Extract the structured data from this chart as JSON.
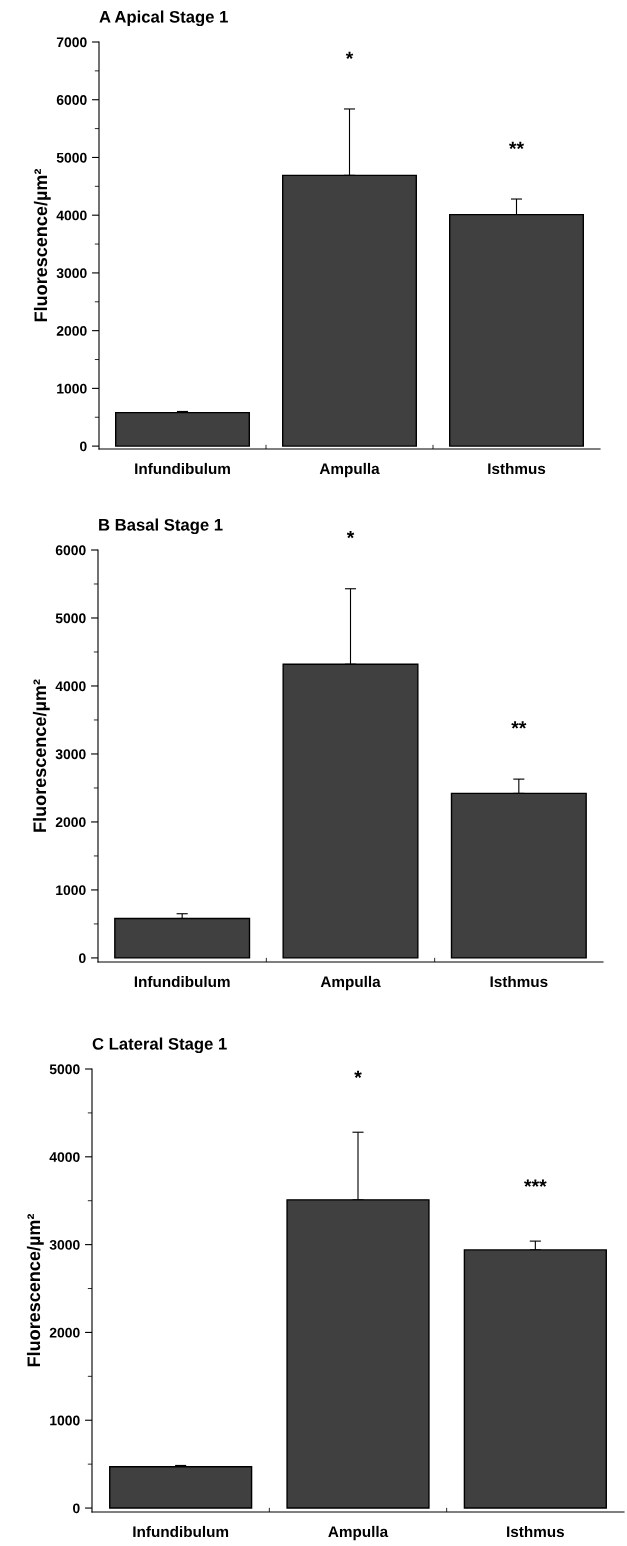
{
  "chart_data": [
    {
      "type": "bar",
      "title": "A Apical Stage 1",
      "ylabel": "Fluorescence/µm²",
      "categories": [
        "Infundibulum",
        "Ampulla",
        "Isthmus"
      ],
      "values": [
        580,
        4690,
        4010
      ],
      "errors": [
        [
          580,
          600
        ],
        [
          4690,
          5840
        ],
        [
          4010,
          4280
        ]
      ],
      "color": "#404040",
      "ylim": [
        -50,
        7000
      ],
      "yticks": [
        0,
        1000,
        2000,
        3000,
        4000,
        5000,
        6000,
        7000
      ],
      "annotations": [
        "*",
        "**"
      ]
    },
    {
      "type": "bar",
      "title": "B Basal Stage 1",
      "ylabel": "Fluorescence/µm²",
      "categories": [
        "Infundibulum",
        "Ampulla",
        "Isthmus"
      ],
      "values": [
        580,
        4320,
        2420
      ],
      "errors": [
        [
          580,
          650
        ],
        [
          4320,
          5430
        ],
        [
          2420,
          2630
        ]
      ],
      "color": "#404040",
      "ylim": [
        -60,
        6000
      ],
      "yticks": [
        0,
        1000,
        2000,
        3000,
        4000,
        5000,
        6000
      ],
      "annotations": [
        "*",
        "**"
      ]
    },
    {
      "type": "bar",
      "title": "C Lateral Stage 1",
      "ylabel": "Fluorescence/µm²",
      "categories": [
        "Infundibulum",
        "Ampulla",
        "Isthmus"
      ],
      "values": [
        470,
        3510,
        2940
      ],
      "errors": [
        [
          470,
          485
        ],
        [
          3510,
          4280
        ],
        [
          2940,
          3040
        ]
      ],
      "color": "#404040",
      "ylim": [
        -45,
        5000
      ],
      "yticks": [
        0,
        1000,
        2000,
        3000,
        4000,
        5000
      ],
      "annotations": [
        "*",
        "***"
      ]
    }
  ]
}
